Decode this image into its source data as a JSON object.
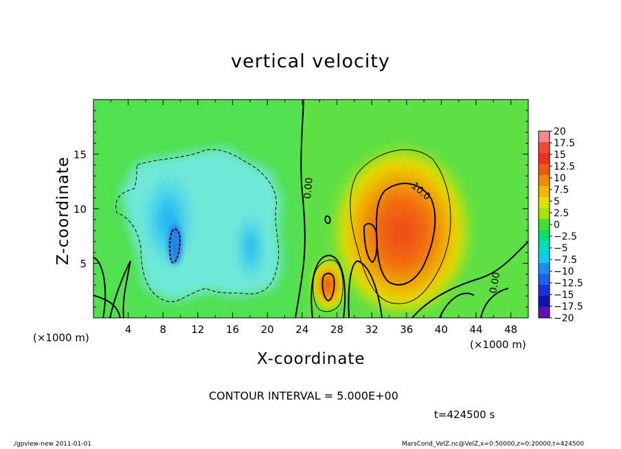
{
  "chart_data": {
    "type": "heatmap",
    "title": "vertical velocity",
    "xlabel": "X-coordinate",
    "ylabel": "Z-coordinate",
    "x_unit": "(×1000 m)",
    "xlim": [
      0,
      50
    ],
    "ylim": [
      0,
      20
    ],
    "x_ticks": [
      4,
      8,
      12,
      16,
      20,
      24,
      28,
      32,
      36,
      40,
      44,
      48
    ],
    "y_ticks": [
      5,
      10,
      15
    ],
    "colorbar": {
      "levels": [
        20,
        17.5,
        15,
        12.5,
        10,
        7.5,
        5,
        2.5,
        0,
        -2.5,
        -5,
        -7.5,
        -10,
        -12.5,
        -15,
        -17.5,
        -20
      ],
      "labels": [
        "20",
        "17.5",
        "15",
        "12.5",
        "10",
        "7.5",
        "5",
        "2.5",
        "0",
        "−2.5",
        "−5",
        "−7.5",
        "−10",
        "−12.5",
        "−15",
        "−17.5",
        "−20"
      ],
      "colors": [
        "#f08a8a",
        "#f04838",
        "#f0301a",
        "#f05a10",
        "#f08a00",
        "#f0b800",
        "#e0e000",
        "#a8e000",
        "#40e030",
        "#00e070",
        "#00e0c0",
        "#10c8f0",
        "#1890f0",
        "#2060f0",
        "#1830e0",
        "#1010b0",
        "#6010b0"
      ]
    },
    "contour_interval_text": "CONTOUR INTERVAL = 5.000E+00",
    "contour_labels": [
      "0.00",
      "10.0",
      "0.00"
    ],
    "time_text": "t=424500 s",
    "features": [
      {
        "name": "updraft",
        "x": 35.5,
        "z": 7.5,
        "max_value": 12.5
      },
      {
        "name": "small-updraft",
        "x": 27,
        "z": 3,
        "max_value": 10
      },
      {
        "name": "downdraft",
        "x": 9.5,
        "z": 7,
        "min_value": -10
      }
    ]
  },
  "footer": {
    "left": "./gpview-new  2011-01-01",
    "right": "MarsCond_VelZ.nc@VelZ,x=0:50000,z=0:20000,t=424500"
  }
}
